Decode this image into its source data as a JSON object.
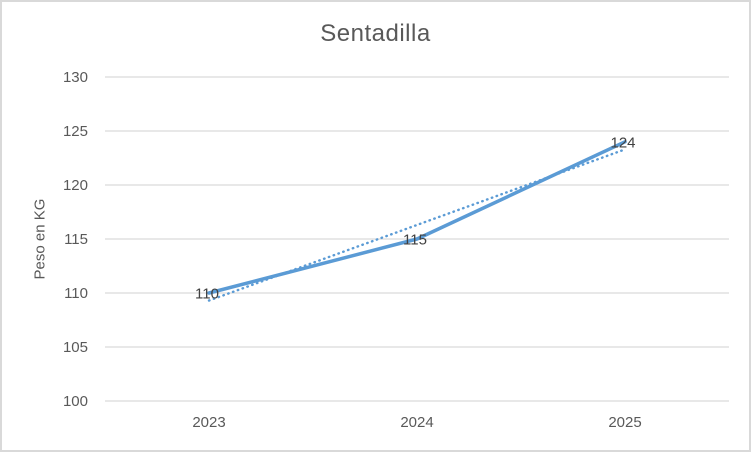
{
  "chart": {
    "title": "Sentadilla",
    "y_axis_label": "Peso en KG"
  },
  "chart_data": {
    "type": "line",
    "title": "Sentadilla",
    "xlabel": "",
    "ylabel": "Peso en KG",
    "categories": [
      "2023",
      "2024",
      "2025"
    ],
    "series": [
      {
        "name": "Peso en KG",
        "values": [
          110,
          115,
          124
        ],
        "data_labels": [
          "110",
          "115",
          "124"
        ],
        "color": "#5B9BD5",
        "style": "solid"
      }
    ],
    "trendline": {
      "type": "linear",
      "values": [
        109.3,
        116.3,
        123.3
      ],
      "color": "#5B9BD5",
      "style": "dotted"
    },
    "ylim": [
      100,
      130
    ],
    "ytick_step": 5,
    "grid": true,
    "legend": false,
    "colors": {
      "gridline": "#d9d9d9",
      "border": "#d9d9d9",
      "axis_text": "#595959",
      "data_label_text": "#404040",
      "background": "#ffffff"
    }
  }
}
